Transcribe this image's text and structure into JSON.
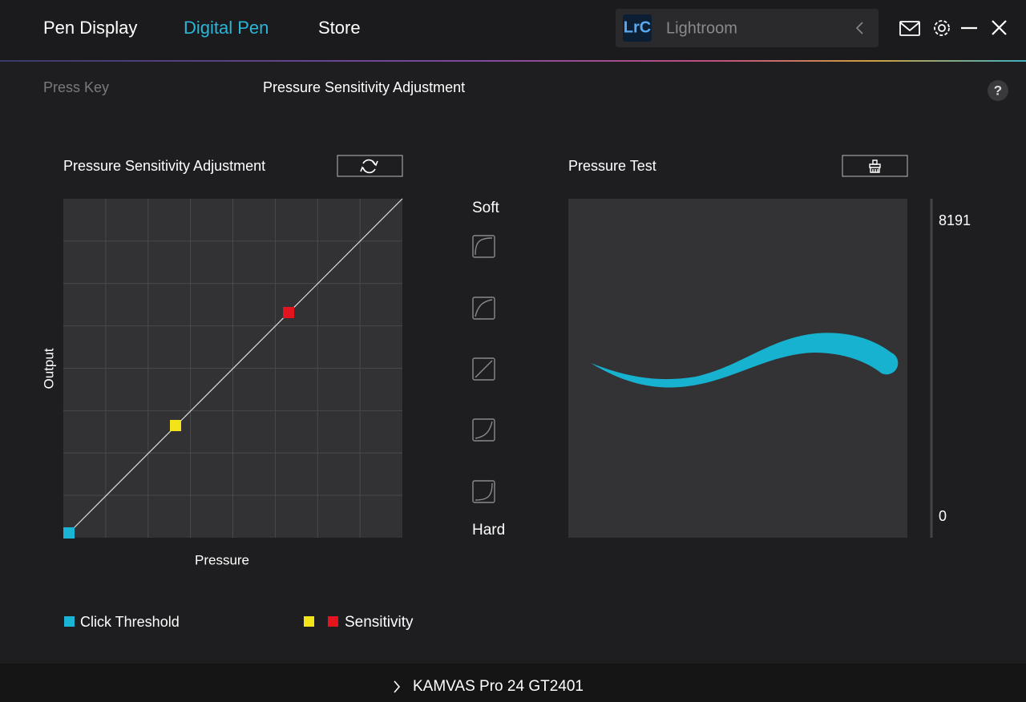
{
  "top_bar": {
    "tabs": [
      "Pen Display",
      "Digital Pen",
      "Store"
    ],
    "app_selector": {
      "icon": "LrC",
      "name": "Lightroom"
    }
  },
  "sub_tabs": [
    "Press Key",
    "Pressure Sensitivity Adjustment"
  ],
  "help": "?",
  "pressure_curve": {
    "title": "Pressure Sensitivity Adjustment",
    "y_label": "Output",
    "x_label": "Pressure",
    "soft": "Soft",
    "hard": "Hard"
  },
  "pressure_test": {
    "title": "Pressure Test",
    "max": 8191,
    "min": 0
  },
  "legend": {
    "click_threshold": "Click Threshold",
    "sensitivity": "Sensitivity"
  },
  "device": "KAMVAS Pro 24 GT2401"
}
